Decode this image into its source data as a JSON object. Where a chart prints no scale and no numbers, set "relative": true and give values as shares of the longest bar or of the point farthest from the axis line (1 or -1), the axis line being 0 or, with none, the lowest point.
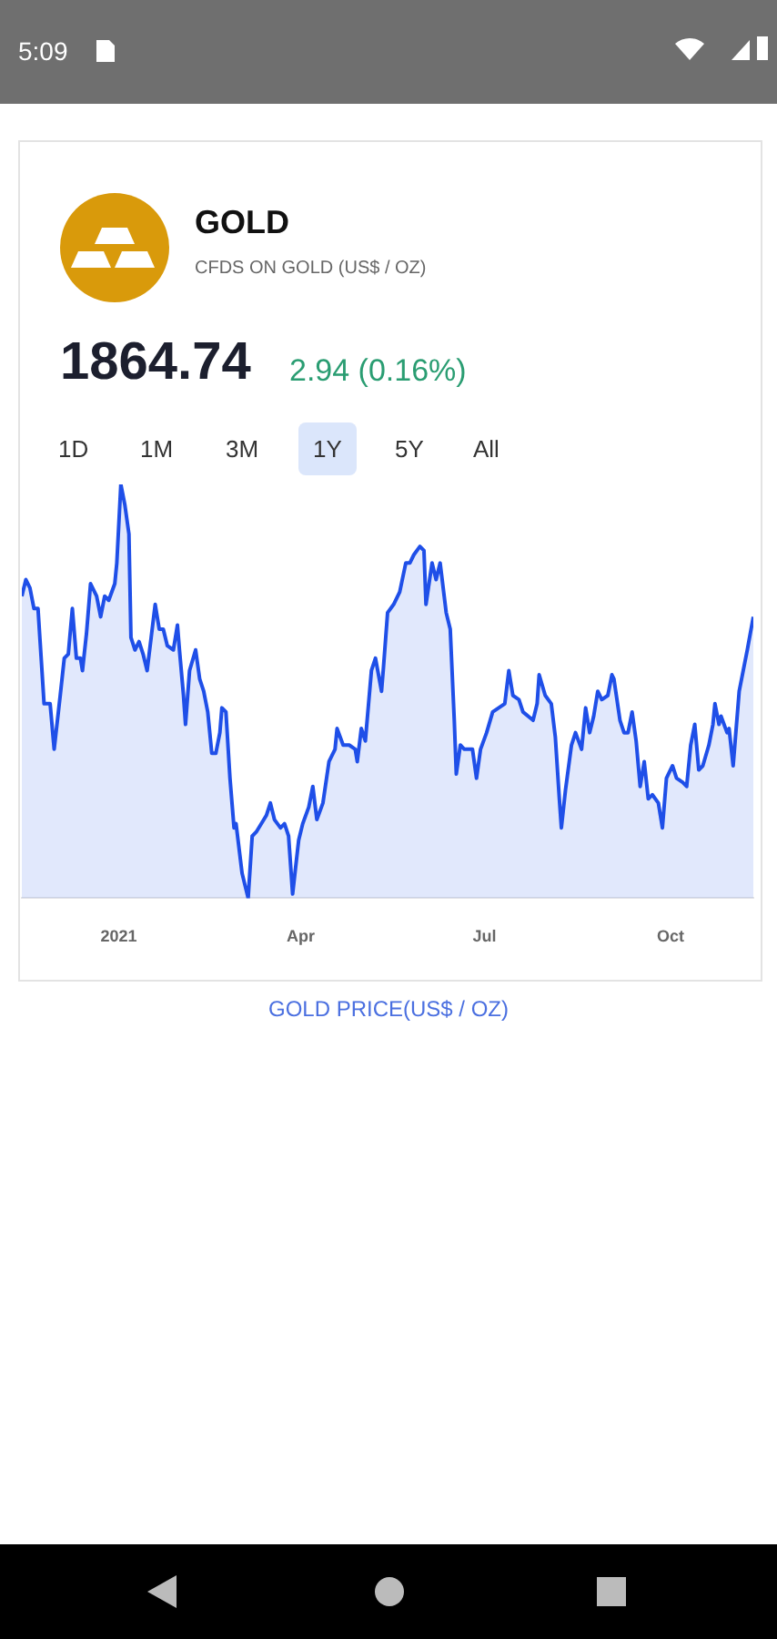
{
  "chart_data": {
    "type": "area",
    "title": "GOLD",
    "subtitle": "CFDS ON GOLD (US$ / OZ)",
    "relative": true,
    "x": [
      "2020-11-14",
      "2020-11-16",
      "2020-11-18",
      "2020-11-20",
      "2020-11-22",
      "2020-11-25",
      "2020-11-28",
      "2020-11-30",
      "2020-12-03",
      "2020-12-05",
      "2020-12-07",
      "2020-12-09",
      "2020-12-11",
      "2020-12-13",
      "2020-12-14",
      "2020-12-16",
      "2020-12-18",
      "2020-12-21",
      "2020-12-23",
      "2020-12-25",
      "2020-12-27",
      "2020-12-30",
      "2020-12-31",
      "2021-01-02",
      "2021-01-04",
      "2021-01-06",
      "2021-01-07",
      "2021-01-09",
      "2021-01-11",
      "2021-01-13",
      "2021-01-15",
      "2021-01-17",
      "2021-01-19",
      "2021-01-21",
      "2021-01-23",
      "2021-01-25",
      "2021-01-28",
      "2021-01-30",
      "2021-01-31",
      "2021-02-02",
      "2021-02-03",
      "2021-02-05",
      "2021-02-08",
      "2021-02-10",
      "2021-02-12",
      "2021-02-14",
      "2021-02-16",
      "2021-02-18",
      "2021-02-20",
      "2021-02-21",
      "2021-02-23",
      "2021-02-25",
      "2021-02-27",
      "2021-02-28",
      "2021-03-03",
      "2021-03-06",
      "2021-03-08",
      "2021-03-10",
      "2021-03-15",
      "2021-03-17",
      "2021-03-19",
      "2021-03-22",
      "2021-03-24",
      "2021-03-26",
      "2021-03-28",
      "2021-03-31",
      "2021-04-02",
      "2021-04-05",
      "2021-04-07",
      "2021-04-09",
      "2021-04-12",
      "2021-04-15",
      "2021-04-18",
      "2021-04-19",
      "2021-04-22",
      "2021-04-25",
      "2021-04-28",
      "2021-04-29",
      "2021-05-01",
      "2021-05-03",
      "2021-05-06",
      "2021-05-08",
      "2021-05-11",
      "2021-05-12",
      "2021-05-14",
      "2021-05-17",
      "2021-05-20",
      "2021-05-23",
      "2021-05-25",
      "2021-05-27",
      "2021-05-30",
      "2021-06-01",
      "2021-06-02",
      "2021-06-05",
      "2021-06-07",
      "2021-06-09",
      "2021-06-12",
      "2021-06-14",
      "2021-06-16",
      "2021-06-17",
      "2021-06-19",
      "2021-06-21",
      "2021-06-23",
      "2021-06-25",
      "2021-06-27",
      "2021-06-29",
      "2021-07-02",
      "2021-07-05",
      "2021-07-08",
      "2021-07-11",
      "2021-07-13",
      "2021-07-15",
      "2021-07-18",
      "2021-07-20",
      "2021-07-25",
      "2021-07-27",
      "2021-07-28",
      "2021-07-31",
      "2021-08-03",
      "2021-08-05",
      "2021-08-07",
      "2021-08-08",
      "2021-08-10",
      "2021-08-13",
      "2021-08-15",
      "2021-08-18",
      "2021-08-20",
      "2021-08-22",
      "2021-08-24",
      "2021-08-26",
      "2021-08-28",
      "2021-08-31",
      "2021-09-02",
      "2021-09-03",
      "2021-09-06",
      "2021-09-08",
      "2021-09-10",
      "2021-09-12",
      "2021-09-14",
      "2021-09-16",
      "2021-09-18",
      "2021-09-20",
      "2021-09-22",
      "2021-09-25",
      "2021-09-27",
      "2021-09-29",
      "2021-10-02",
      "2021-10-04",
      "2021-10-07",
      "2021-10-09",
      "2021-10-11",
      "2021-10-13",
      "2021-10-15",
      "2021-10-17",
      "2021-10-20",
      "2021-10-22",
      "2021-10-23",
      "2021-10-25",
      "2021-10-26",
      "2021-10-29",
      "2021-10-30",
      "2021-11-01",
      "2021-11-04",
      "2021-11-06",
      "2021-11-08",
      "2021-11-11"
    ],
    "series": [
      {
        "color": "#1f4fe8",
        "values": [
          0.73,
          0.77,
          0.75,
          0.7,
          0.7,
          0.47,
          0.47,
          0.36,
          0.49,
          0.58,
          0.59,
          0.7,
          0.58,
          0.58,
          0.55,
          0.64,
          0.76,
          0.73,
          0.68,
          0.73,
          0.72,
          0.76,
          0.81,
          1,
          0.95,
          0.88,
          0.63,
          0.6,
          0.62,
          0.59,
          0.55,
          0.63,
          0.71,
          0.65,
          0.65,
          0.61,
          0.6,
          0.66,
          0.6,
          0.49,
          0.42,
          0.55,
          0.6,
          0.53,
          0.5,
          0.45,
          0.35,
          0.35,
          0.4,
          0.46,
          0.45,
          0.29,
          0.17,
          0.18,
          0.06,
          0,
          0.15,
          0.16,
          0.2,
          0.23,
          0.19,
          0.17,
          0.18,
          0.15,
          0.01,
          0.14,
          0.18,
          0.22,
          0.27,
          0.19,
          0.23,
          0.33,
          0.36,
          0.41,
          0.37,
          0.37,
          0.36,
          0.33,
          0.41,
          0.38,
          0.55,
          0.58,
          0.5,
          0.56,
          0.69,
          0.71,
          0.74,
          0.81,
          0.81,
          0.83,
          0.85,
          0.84,
          0.71,
          0.81,
          0.77,
          0.81,
          0.69,
          0.65,
          0.43,
          0.3,
          0.37,
          0.36,
          0.36,
          0.36,
          0.29,
          0.36,
          0.4,
          0.45,
          0.46,
          0.47,
          0.55,
          0.49,
          0.48,
          0.45,
          0.43,
          0.47,
          0.54,
          0.49,
          0.47,
          0.39,
          0.24,
          0.17,
          0.26,
          0.37,
          0.4,
          0.36,
          0.46,
          0.4,
          0.44,
          0.5,
          0.48,
          0.49,
          0.54,
          0.53,
          0.43,
          0.4,
          0.4,
          0.45,
          0.38,
          0.27,
          0.33,
          0.24,
          0.25,
          0.23,
          0.17,
          0.29,
          0.32,
          0.29,
          0.28,
          0.27,
          0.37,
          0.42,
          0.31,
          0.32,
          0.37,
          0.42,
          0.47,
          0.42,
          0.44,
          0.4,
          0.41,
          0.32,
          0.5,
          0.55,
          0.6,
          0.68
        ]
      }
    ],
    "xlim": [
      "2020-11-14",
      "2021-11-11"
    ],
    "xticks": [
      {
        "value": "2021-01-01",
        "label": "2021"
      },
      {
        "value": "2021-04-01",
        "label": "Apr"
      },
      {
        "value": "2021-07-01",
        "label": "Jul"
      },
      {
        "value": "2021-10-01",
        "label": "Oct"
      }
    ],
    "marker": "none",
    "line_style": "solid",
    "legend": false,
    "grid": false,
    "annotations": [
      "1864.74",
      "2.94 (0.16%)",
      "1D",
      "1M",
      "3M",
      "1Y",
      "5Y",
      "All",
      "GOLD PRICE(US$ / OZ)",
      "5:09"
    ]
  }
}
